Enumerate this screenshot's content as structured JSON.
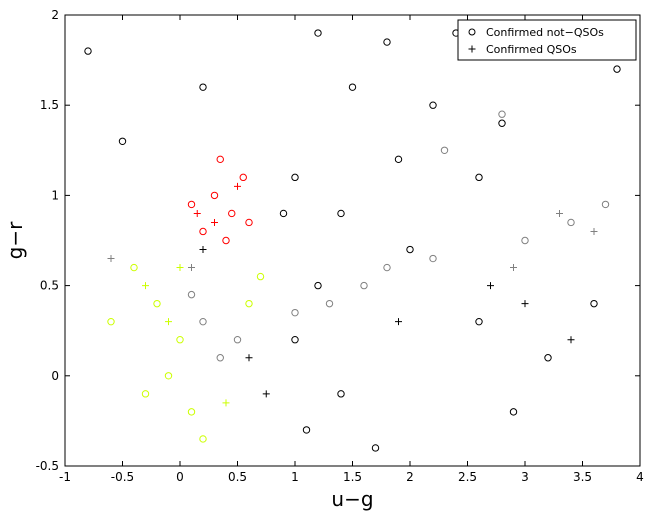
{
  "chart_data": {
    "type": "scatter",
    "title": "",
    "xlabel": "u−g",
    "ylabel": "g−r",
    "xlim": [
      -1,
      4
    ],
    "ylim": [
      -0.5,
      2
    ],
    "grid": false,
    "legend": {
      "placement": "top-right",
      "entries": [
        {
          "label": "Confirmed not−QSOs",
          "marker": "circle"
        },
        {
          "label": "Confirmed QSOs",
          "marker": "plus"
        }
      ]
    },
    "x_ticks": [
      "-1",
      "-0.5",
      "0",
      "0.5",
      "1",
      "1.5",
      "2",
      "2.5",
      "3",
      "3.5",
      "4"
    ],
    "y_ticks": [
      "-0.5",
      "0",
      "0.5",
      "1",
      "1.5",
      "2"
    ],
    "x_tick_values": [
      -1,
      -0.5,
      0,
      0.5,
      1,
      1.5,
      2,
      2.5,
      3,
      3.5,
      4
    ],
    "y_tick_values": [
      -0.5,
      0,
      0.5,
      1,
      1.5,
      2
    ],
    "series": [
      {
        "color": "#000000",
        "marker": "circle",
        "points": [
          [
            1.2,
            1.9
          ],
          [
            1.8,
            1.85
          ],
          [
            2.4,
            1.9
          ],
          [
            3.0,
            1.8
          ],
          [
            1.5,
            1.6
          ],
          [
            2.2,
            1.5
          ],
          [
            2.8,
            1.4
          ],
          [
            1.9,
            1.2
          ],
          [
            1.0,
            1.1
          ],
          [
            2.6,
            1.1
          ],
          [
            1.4,
            0.9
          ],
          [
            2.0,
            0.7
          ],
          [
            1.2,
            0.5
          ],
          [
            1.0,
            0.2
          ],
          [
            1.4,
            -0.1
          ],
          [
            1.1,
            -0.3
          ],
          [
            2.6,
            0.3
          ],
          [
            3.2,
            0.1
          ],
          [
            3.6,
            0.4
          ],
          [
            -0.8,
            1.8
          ],
          [
            -0.5,
            1.3
          ],
          [
            0.2,
            1.6
          ],
          [
            3.8,
            1.7
          ],
          [
            2.9,
            -0.2
          ],
          [
            1.7,
            -0.4
          ],
          [
            0.9,
            0.9
          ]
        ]
      },
      {
        "color": "#808080",
        "marker": "circle",
        "points": [
          [
            0.2,
            0.3
          ],
          [
            0.35,
            0.1
          ],
          [
            0.1,
            0.45
          ],
          [
            0.5,
            0.2
          ],
          [
            1.3,
            0.4
          ],
          [
            1.6,
            0.5
          ],
          [
            1.8,
            0.6
          ],
          [
            2.2,
            0.65
          ],
          [
            1.0,
            0.35
          ],
          [
            3.0,
            0.75
          ],
          [
            3.4,
            0.85
          ],
          [
            3.7,
            0.95
          ],
          [
            2.8,
            1.45
          ],
          [
            2.3,
            1.25
          ]
        ]
      },
      {
        "color": "#ff0000",
        "marker": "circle",
        "points": [
          [
            0.3,
            1.0
          ],
          [
            0.45,
            0.9
          ],
          [
            0.2,
            0.8
          ],
          [
            0.55,
            1.1
          ],
          [
            0.35,
            1.2
          ],
          [
            0.1,
            0.95
          ],
          [
            0.6,
            0.85
          ],
          [
            0.4,
            0.75
          ]
        ]
      },
      {
        "color": "#ccff00",
        "marker": "circle",
        "points": [
          [
            -0.2,
            0.4
          ],
          [
            0.0,
            0.2
          ],
          [
            -0.1,
            0.0
          ],
          [
            0.1,
            -0.2
          ],
          [
            -0.4,
            0.6
          ],
          [
            0.6,
            0.4
          ],
          [
            -0.3,
            -0.1
          ],
          [
            0.2,
            -0.35
          ],
          [
            0.7,
            0.55
          ],
          [
            -0.6,
            0.3
          ]
        ]
      },
      {
        "color": "#000000",
        "marker": "plus",
        "points": [
          [
            0.2,
            0.7
          ],
          [
            0.6,
            0.1
          ],
          [
            0.75,
            -0.1
          ],
          [
            3.0,
            0.4
          ],
          [
            2.7,
            0.5
          ],
          [
            3.4,
            0.2
          ],
          [
            1.9,
            0.3
          ]
        ]
      },
      {
        "color": "#808080",
        "marker": "plus",
        "points": [
          [
            3.3,
            0.9
          ],
          [
            3.6,
            0.8
          ],
          [
            2.9,
            0.6
          ],
          [
            -0.6,
            0.65
          ],
          [
            0.1,
            0.6
          ]
        ]
      },
      {
        "color": "#ff0000",
        "marker": "plus",
        "points": [
          [
            0.15,
            0.9
          ],
          [
            0.5,
            1.05
          ],
          [
            0.3,
            0.85
          ]
        ]
      },
      {
        "color": "#ccff00",
        "marker": "plus",
        "points": [
          [
            -0.3,
            0.5
          ],
          [
            0.0,
            0.6
          ],
          [
            -0.1,
            0.3
          ],
          [
            0.4,
            -0.15
          ]
        ]
      }
    ]
  }
}
